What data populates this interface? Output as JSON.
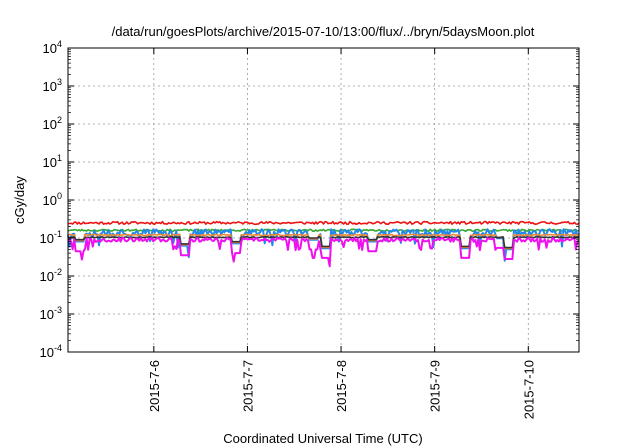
{
  "chart_data": {
    "type": "line",
    "title": "/data/run/goesPlots/archive/2015-07-10/13:00/flux/../bryn/5daysMoon.plot",
    "xlabel": "Coordinated Universal Time (UTC)",
    "ylabel": "cGy/day",
    "y_scale": "log",
    "ylim": [
      0.0001,
      10000
    ],
    "xlim": [
      "2015-07-05 02:00",
      "2015-07-10 13:00"
    ],
    "grid": true,
    "legend": "none",
    "y_ticks": [
      {
        "value": 0.0001,
        "base": "10",
        "exp": "-4"
      },
      {
        "value": 0.001,
        "base": "10",
        "exp": "-3"
      },
      {
        "value": 0.01,
        "base": "10",
        "exp": "-2"
      },
      {
        "value": 0.1,
        "base": "10",
        "exp": "-1"
      },
      {
        "value": 1,
        "base": "10",
        "exp": "0"
      },
      {
        "value": 10,
        "base": "10",
        "exp": "1"
      },
      {
        "value": 100,
        "base": "10",
        "exp": "2"
      },
      {
        "value": 1000,
        "base": "10",
        "exp": "3"
      },
      {
        "value": 10000,
        "base": "10",
        "exp": "4"
      }
    ],
    "x_ticks": [
      {
        "value": "2015-07-06",
        "label": "2015-7-6"
      },
      {
        "value": "2015-07-07",
        "label": "2015-7-7"
      },
      {
        "value": "2015-07-08",
        "label": "2015-7-8"
      },
      {
        "value": "2015-07-09",
        "label": "2015-7-9"
      },
      {
        "value": "2015-07-10",
        "label": "2015-7-10"
      }
    ],
    "series": [
      {
        "color": "#ee1111",
        "base": 0.25,
        "spread": 0.08,
        "seed": 11
      },
      {
        "color": "#33aa33",
        "base": 0.16,
        "spread": 0.06,
        "seed": 23
      },
      {
        "color": "#2288ee",
        "base": 0.14,
        "spread": 0.22,
        "seed": 37
      },
      {
        "color": "#ee8833",
        "base": 0.12,
        "spread": 0.04,
        "seed": 41
      },
      {
        "color": "#333333",
        "base": 0.105,
        "spread": 0.03,
        "seed": 53
      },
      {
        "color": "#ee11ee",
        "base": 0.09,
        "spread": 0.12,
        "seed": 67
      }
    ],
    "dips": [
      {
        "x": "2015-07-05 05:00",
        "value": 0.045
      },
      {
        "x": "2015-07-06 08:00",
        "value": 0.035
      },
      {
        "x": "2015-07-06 21:00",
        "value": 0.04
      },
      {
        "x": "2015-07-07 17:00",
        "value": 0.05
      },
      {
        "x": "2015-07-07 20:00",
        "value": 0.03
      },
      {
        "x": "2015-07-08 08:00",
        "value": 0.045
      },
      {
        "x": "2015-07-09 08:00",
        "value": 0.03
      },
      {
        "x": "2015-07-09 17:00",
        "value": 0.055
      },
      {
        "x": "2015-07-09 19:00",
        "value": 0.028
      }
    ]
  }
}
